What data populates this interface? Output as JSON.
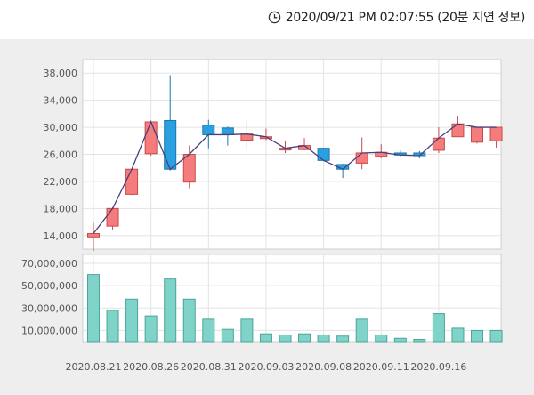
{
  "header": {
    "timestamp": "2020/09/21 PM 02:07:55 (20분 지연 정보)",
    "clock_icon": "clock-icon"
  },
  "colors": {
    "up": "#f57c7c",
    "up_stroke": "#c94a4a",
    "down": "#2aa0e0",
    "down_stroke": "#1a78b0",
    "volume": "#7fd3c8",
    "volume_stroke": "#4aa59a",
    "line": "#4a3f7a"
  },
  "chart_data": [
    {
      "type": "candlestick",
      "name": "price",
      "x": [
        "2020.08.21",
        "2020.08.24",
        "2020.08.25",
        "2020.08.26",
        "2020.08.27",
        "2020.08.28",
        "2020.08.31",
        "2020.09.01",
        "2020.09.02",
        "2020.09.03",
        "2020.09.04",
        "2020.09.07",
        "2020.09.08",
        "2020.09.09",
        "2020.09.10",
        "2020.09.11",
        "2020.09.14",
        "2020.09.15",
        "2020.09.16",
        "2020.09.17",
        "2020.09.18",
        "2020.09.21"
      ],
      "open": [
        13800,
        15400,
        20100,
        26100,
        31000,
        21900,
        30300,
        29900,
        28100,
        28600,
        26700,
        26700,
        26900,
        24500,
        24700,
        25700,
        26200,
        26200,
        26600,
        28600,
        27800,
        28000
      ],
      "close": [
        14300,
        18000,
        23800,
        30800,
        23800,
        26000,
        28900,
        28900,
        29000,
        28600,
        26900,
        27300,
        25100,
        23800,
        26200,
        26300,
        25900,
        25800,
        28400,
        30500,
        30000,
        30000
      ],
      "high": [
        15900,
        18200,
        23800,
        31000,
        37700,
        27300,
        31100,
        30100,
        31000,
        29800,
        28000,
        28400,
        27000,
        24600,
        28500,
        27500,
        26600,
        26500,
        30000,
        31700,
        30000,
        30000
      ],
      "low": [
        11700,
        14900,
        20000,
        25800,
        23600,
        21000,
        26900,
        27300,
        26800,
        28100,
        26200,
        26600,
        25000,
        22500,
        23800,
        25400,
        25600,
        25400,
        26200,
        28700,
        27600,
        27000
      ],
      "ylim": [
        12000,
        40000
      ],
      "yticks": [
        14000,
        18000,
        22000,
        26000,
        30000,
        34000,
        38000
      ]
    },
    {
      "type": "bar",
      "name": "volume",
      "x": [
        "2020.08.21",
        "2020.08.24",
        "2020.08.25",
        "2020.08.26",
        "2020.08.27",
        "2020.08.28",
        "2020.08.31",
        "2020.09.01",
        "2020.09.02",
        "2020.09.03",
        "2020.09.04",
        "2020.09.07",
        "2020.09.08",
        "2020.09.09",
        "2020.09.10",
        "2020.09.11",
        "2020.09.14",
        "2020.09.15",
        "2020.09.16",
        "2020.09.17",
        "2020.09.18",
        "2020.09.21"
      ],
      "values": [
        60000000,
        28000000,
        38000000,
        23000000,
        56000000,
        38000000,
        20000000,
        11000000,
        20000000,
        7000000,
        6000000,
        7000000,
        6000000,
        5000000,
        20000000,
        6000000,
        3000000,
        2000000,
        25000000,
        12000000,
        10000000,
        10000000
      ],
      "ylim": [
        0,
        78000000
      ],
      "yticks": [
        10000000,
        30000000,
        50000000,
        70000000
      ],
      "ytick_labels": [
        "10,000,000",
        "30,000,000",
        "50,000,000",
        "70,000,000"
      ]
    }
  ],
  "x_axis": {
    "tick_labels": [
      {
        "index": 0,
        "label": "2020.08.21"
      },
      {
        "index": 3,
        "label": "2020.08.26"
      },
      {
        "index": 6,
        "label": "2020.08.31"
      },
      {
        "index": 9,
        "label": "2020.09.03"
      },
      {
        "index": 12,
        "label": "2020.09.08"
      },
      {
        "index": 15,
        "label": "2020.09.11"
      },
      {
        "index": 18,
        "label": "2020.09.16"
      }
    ]
  }
}
